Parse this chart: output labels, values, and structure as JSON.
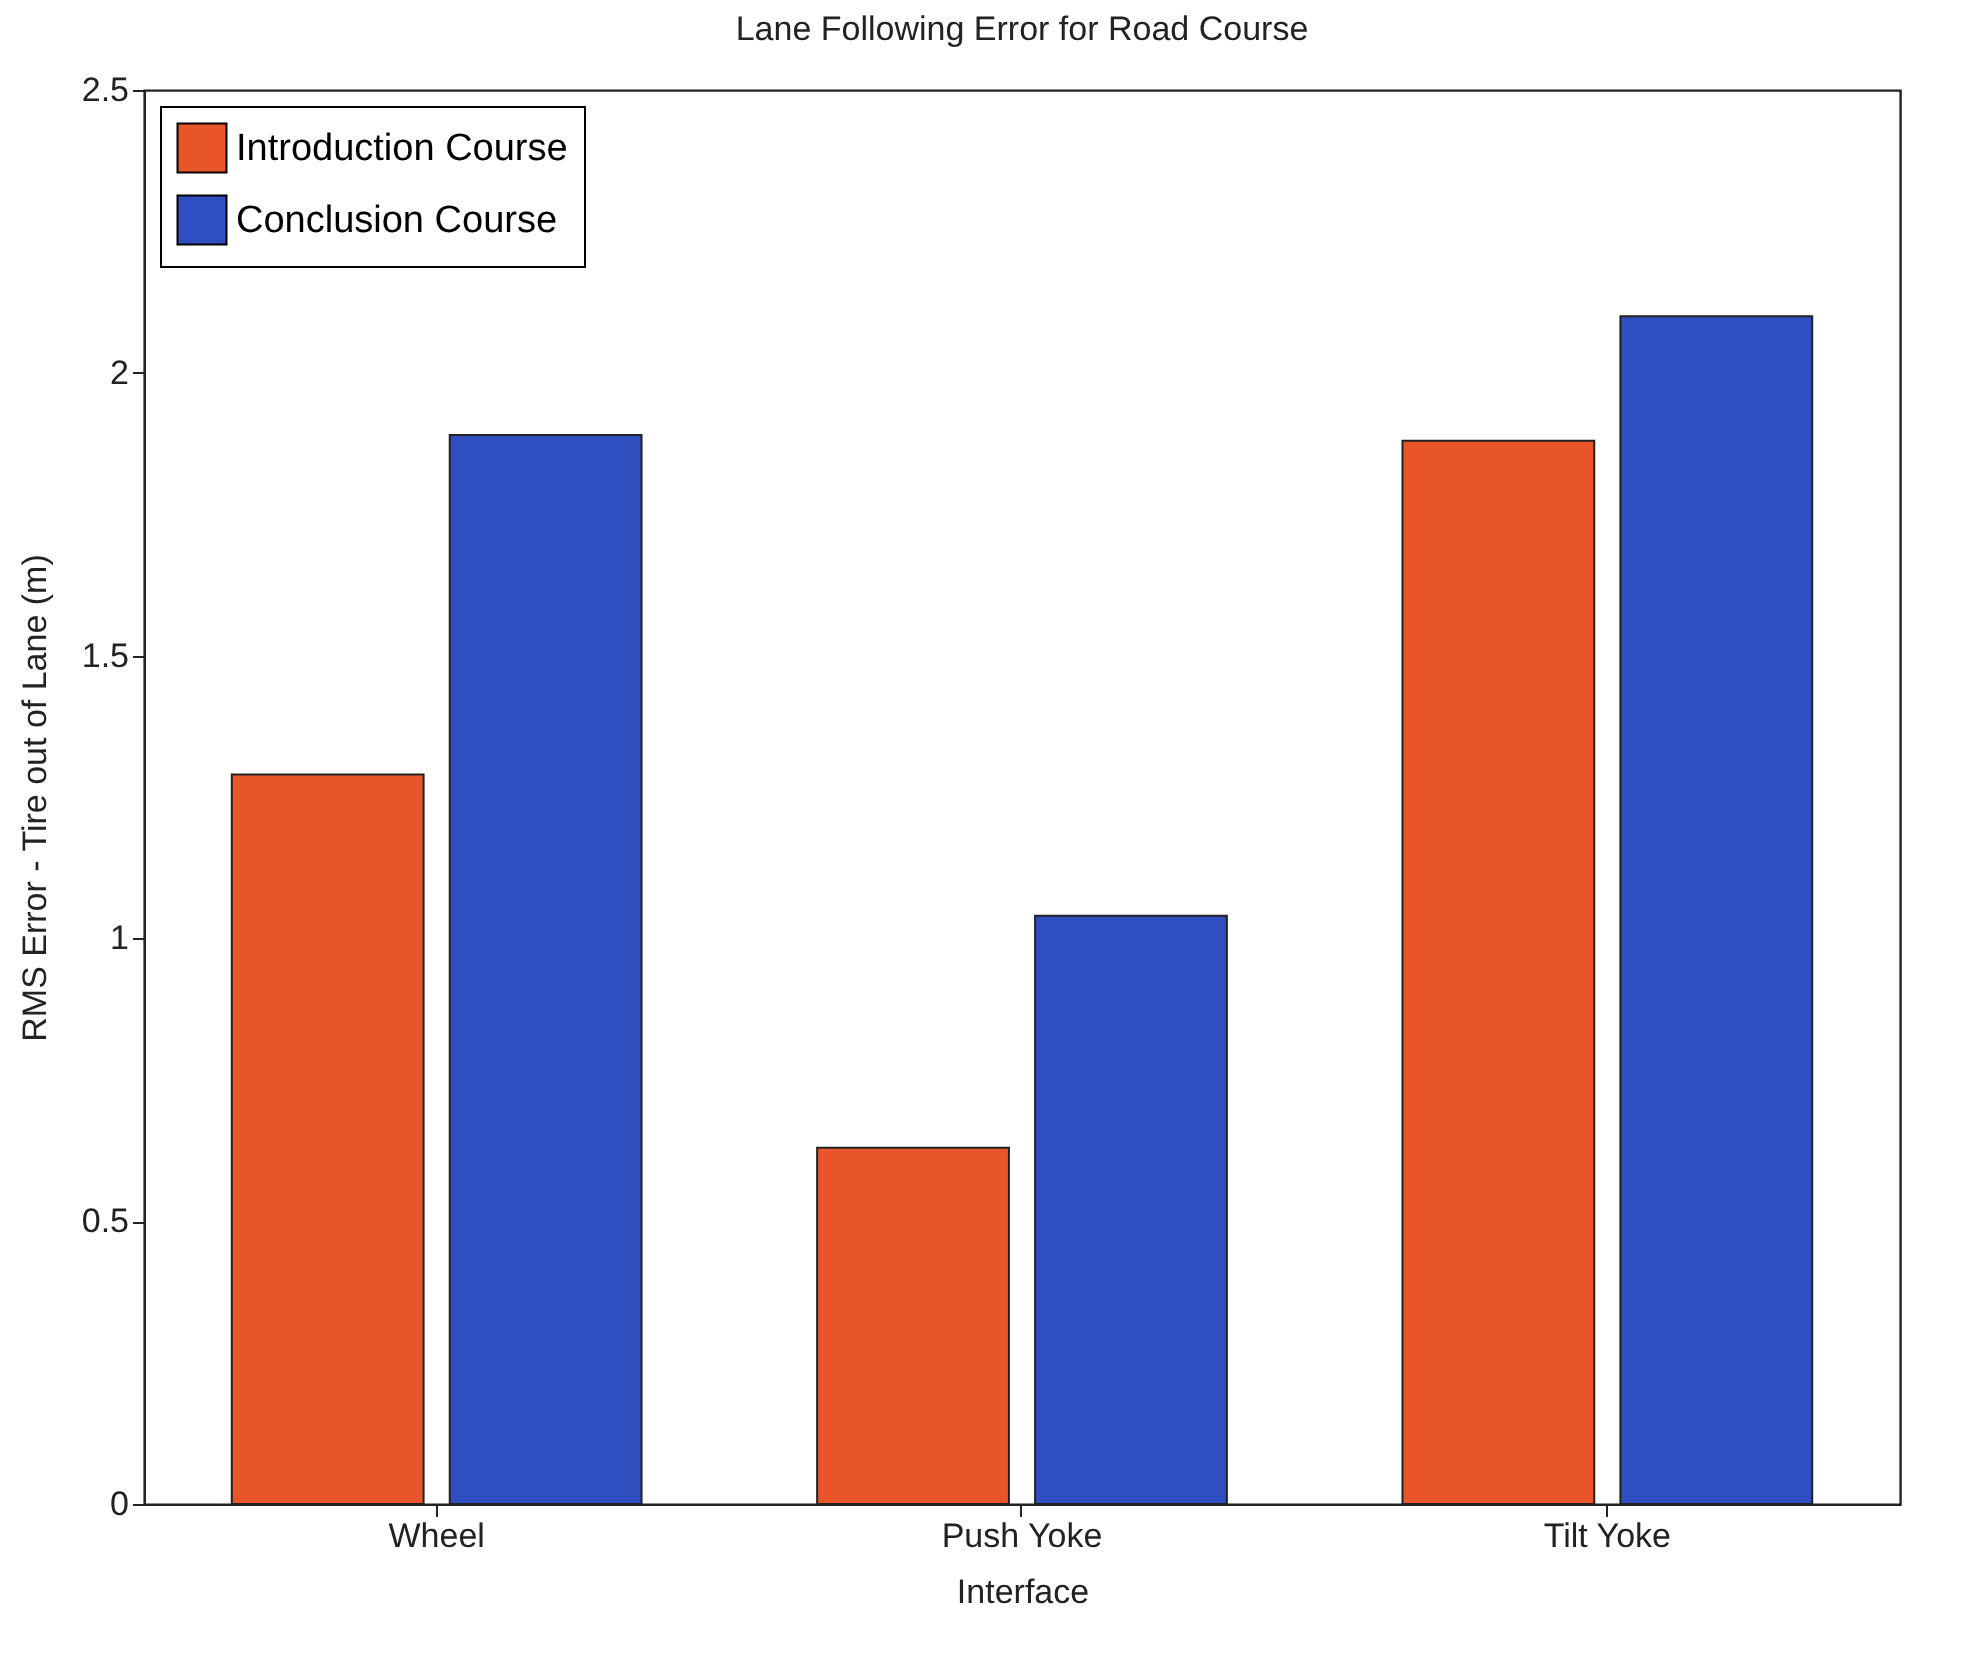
{
  "chart_data": {
    "type": "bar",
    "title": "Lane Following Error for Road Course",
    "xlabel": "Interface",
    "ylabel": "RMS Error - Tire out of Lane (m)",
    "categories": [
      "Wheel",
      "Push Yoke",
      "Tilt Yoke"
    ],
    "series": [
      {
        "name": "Introduction Course",
        "color": "#e8552b",
        "values": [
          1.29,
          0.63,
          1.88
        ]
      },
      {
        "name": "Conclusion Course",
        "color": "#2f4fc0",
        "values": [
          1.89,
          1.04,
          2.1
        ]
      }
    ],
    "ylim": [
      0,
      2.5
    ],
    "yticks": [
      0,
      0.5,
      1,
      1.5,
      2,
      2.5
    ],
    "grid": false,
    "legend": "top left"
  }
}
